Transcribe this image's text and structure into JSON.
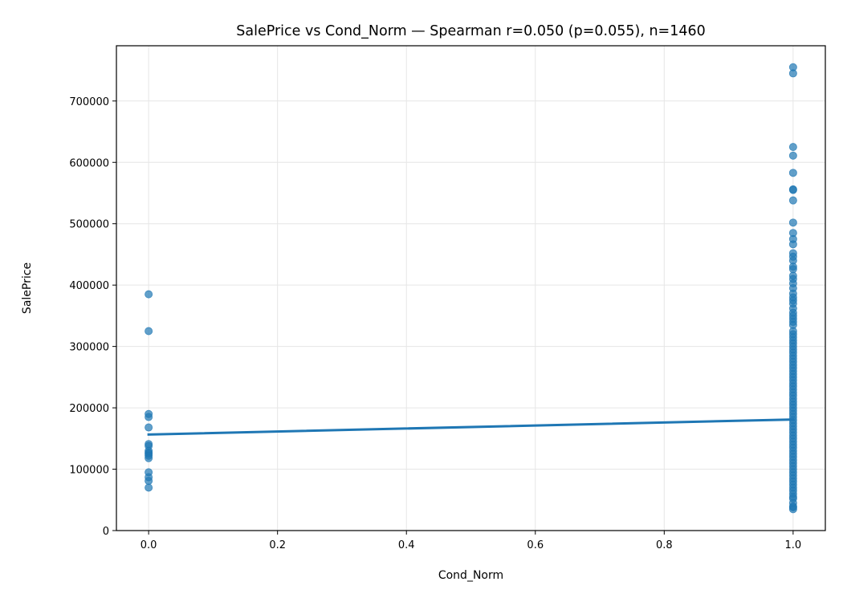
{
  "chart_data": {
    "type": "scatter",
    "title": "SalePrice vs Cond_Norm — Spearman r=0.050 (p=0.055), n=1460",
    "xlabel": "Cond_Norm",
    "ylabel": "SalePrice",
    "xlim": [
      -0.05,
      1.05
    ],
    "ylim": [
      0,
      790000
    ],
    "xticks": [
      0.0,
      0.2,
      0.4,
      0.6,
      0.8,
      1.0
    ],
    "xtick_labels": [
      "0.0",
      "0.2",
      "0.4",
      "0.6",
      "0.8",
      "1.0"
    ],
    "yticks": [
      0,
      100000,
      200000,
      300000,
      400000,
      500000,
      600000,
      700000
    ],
    "ytick_labels": [
      "0",
      "100000",
      "200000",
      "300000",
      "400000",
      "500000",
      "600000",
      "700000"
    ],
    "grid": true,
    "colors": {
      "points": "#1f77b4",
      "line": "#1f77b4",
      "grid": "#e6e6e6"
    },
    "points": [
      [
        0,
        385000
      ],
      [
        0,
        325000
      ],
      [
        0,
        190000
      ],
      [
        0,
        185000
      ],
      [
        0,
        168000
      ],
      [
        0,
        141000
      ],
      [
        0,
        138000
      ],
      [
        0,
        130000
      ],
      [
        0,
        127000
      ],
      [
        0,
        125000
      ],
      [
        0,
        122000
      ],
      [
        0,
        118000
      ],
      [
        0,
        95000
      ],
      [
        0,
        87000
      ],
      [
        0,
        81000
      ],
      [
        0,
        70000
      ],
      [
        1,
        755000
      ],
      [
        1,
        745000
      ],
      [
        1,
        625000
      ],
      [
        1,
        611000
      ],
      [
        1,
        582900
      ],
      [
        1,
        556000
      ],
      [
        1,
        555000
      ],
      [
        1,
        538000
      ],
      [
        1,
        501800
      ],
      [
        1,
        485000
      ],
      [
        1,
        475000
      ],
      [
        1,
        466500
      ],
      [
        1,
        451950
      ],
      [
        1,
        446261
      ],
      [
        1,
        440000
      ],
      [
        1,
        430000
      ],
      [
        1,
        426000
      ],
      [
        1,
        415298
      ],
      [
        1,
        410000
      ],
      [
        1,
        402861
      ],
      [
        1,
        395000
      ],
      [
        1,
        386250
      ],
      [
        1,
        380000
      ],
      [
        1,
        375000
      ],
      [
        1,
        369900
      ],
      [
        1,
        361919
      ],
      [
        1,
        355000
      ],
      [
        1,
        350000
      ],
      [
        1,
        345000
      ],
      [
        1,
        340000
      ],
      [
        1,
        335000
      ],
      [
        1,
        325000
      ],
      [
        1,
        320000
      ],
      [
        1,
        315000
      ],
      [
        1,
        310000
      ],
      [
        1,
        305000
      ],
      [
        1,
        300000
      ],
      [
        1,
        295000
      ],
      [
        1,
        290000
      ],
      [
        1,
        285000
      ],
      [
        1,
        280000
      ],
      [
        1,
        275000
      ],
      [
        1,
        270000
      ],
      [
        1,
        265000
      ],
      [
        1,
        260000
      ],
      [
        1,
        255000
      ],
      [
        1,
        250000
      ],
      [
        1,
        245000
      ],
      [
        1,
        240000
      ],
      [
        1,
        235000
      ],
      [
        1,
        230000
      ],
      [
        1,
        225000
      ],
      [
        1,
        220000
      ],
      [
        1,
        215000
      ],
      [
        1,
        210000
      ],
      [
        1,
        205000
      ],
      [
        1,
        200000
      ],
      [
        1,
        195000
      ],
      [
        1,
        190000
      ],
      [
        1,
        185000
      ],
      [
        1,
        180000
      ],
      [
        1,
        175000
      ],
      [
        1,
        170000
      ],
      [
        1,
        165000
      ],
      [
        1,
        160000
      ],
      [
        1,
        155000
      ],
      [
        1,
        150000
      ],
      [
        1,
        145000
      ],
      [
        1,
        140000
      ],
      [
        1,
        135000
      ],
      [
        1,
        130000
      ],
      [
        1,
        125000
      ],
      [
        1,
        120000
      ],
      [
        1,
        115000
      ],
      [
        1,
        110000
      ],
      [
        1,
        105000
      ],
      [
        1,
        100000
      ],
      [
        1,
        95000
      ],
      [
        1,
        90000
      ],
      [
        1,
        85000
      ],
      [
        1,
        80000
      ],
      [
        1,
        75000
      ],
      [
        1,
        70000
      ],
      [
        1,
        65000
      ],
      [
        1,
        60000
      ],
      [
        1,
        55000
      ],
      [
        1,
        52000
      ],
      [
        1,
        45000
      ],
      [
        1,
        39300
      ],
      [
        1,
        37900
      ],
      [
        1,
        34900
      ]
    ],
    "fit_line": {
      "x": [
        0,
        1
      ],
      "y": [
        156500,
        181000
      ]
    }
  }
}
